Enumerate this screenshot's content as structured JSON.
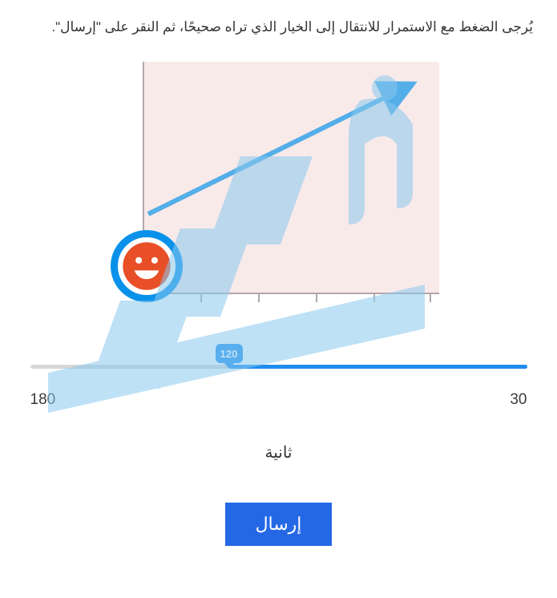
{
  "instruction": "يُرجى الضغط مع الاستمرار للانتقال إلى الخيار الذي تراه صحيحًا، ثم النقر على \"إرسال\".",
  "chart": {
    "type": "line-arrow",
    "background_color": "#f9eaea",
    "axis_color": "#b3a8a8",
    "arrow_color": "#54aee8",
    "arrow_start_xy": [
      0,
      0.35
    ],
    "arrow_end_xy": [
      0.92,
      0.92
    ],
    "line_width": 6,
    "tick_count": 5,
    "smiley": {
      "ring_color": "#0a91ea",
      "face_color": "#e84f27",
      "bg_color": "#ffffff"
    }
  },
  "slider": {
    "min": 30,
    "max": 180,
    "value": 120,
    "track_color": "#d7d7d7",
    "fill_color": "#1f8ded",
    "thumb_color": "#1f8ded",
    "left_label": "180",
    "right_label": "30",
    "value_label": "120"
  },
  "unit_label": "ثانية",
  "submit_label": "إرسال",
  "colors": {
    "text": "#333333",
    "button_bg": "#2468e6",
    "button_text": "#ffffff",
    "watermark": "#89c9ef"
  }
}
